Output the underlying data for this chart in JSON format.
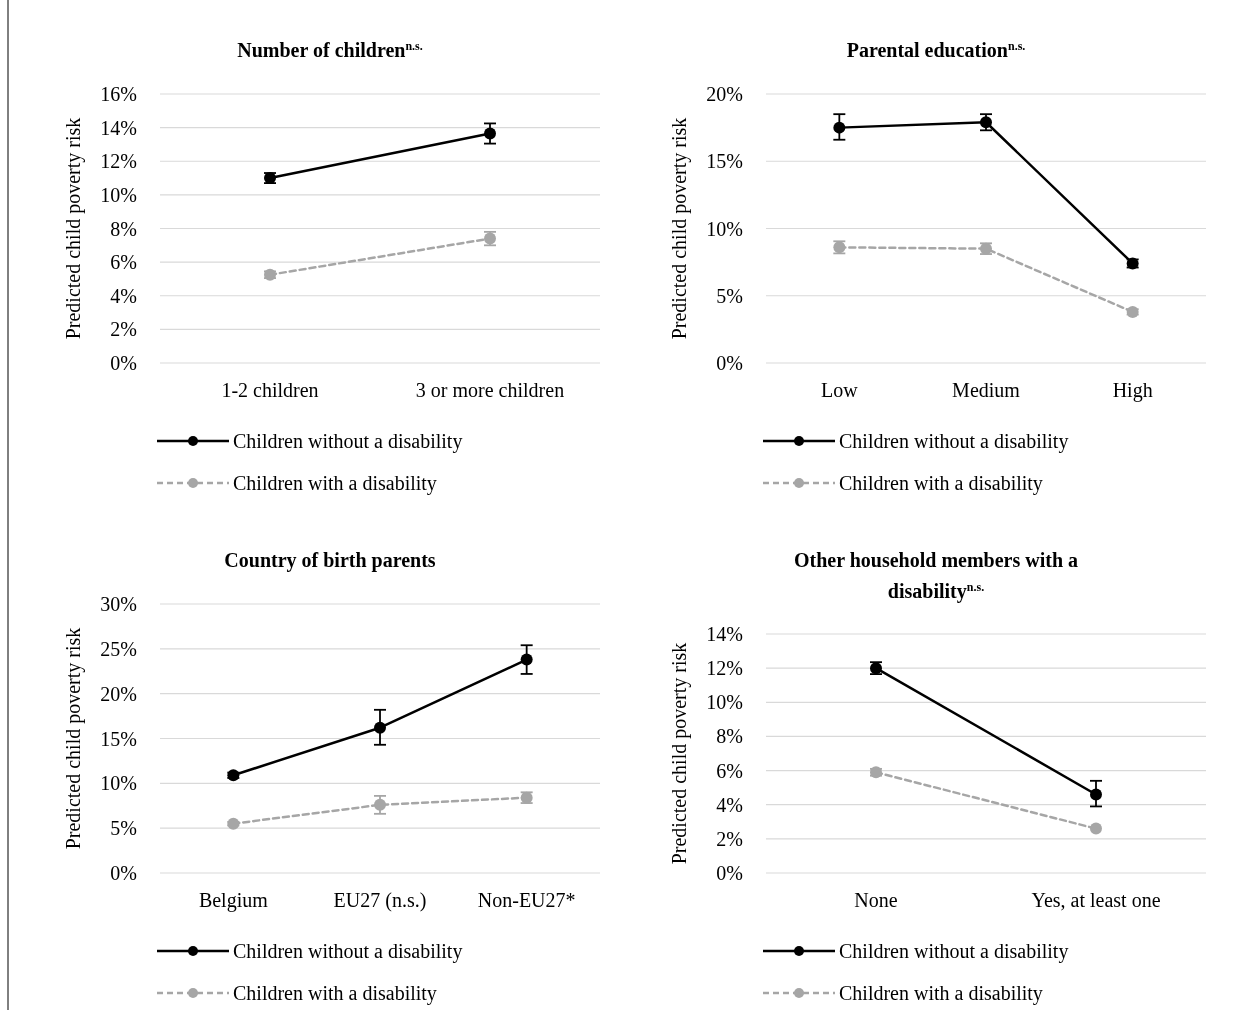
{
  "chart_data": [
    {
      "type": "line",
      "title": "Number of children$^{n.s.}$",
      "ylabel": "Predicted child poverty risk",
      "categories": [
        "1-2 children",
        "3 or more children"
      ],
      "ylim": [
        0,
        16
      ],
      "yticks": [
        {
          "value": 0,
          "label": "0%"
        },
        {
          "value": 2,
          "label": "2%"
        },
        {
          "value": 4,
          "label": "4%"
        },
        {
          "value": 6,
          "label": "6%"
        },
        {
          "value": 8,
          "label": "8%"
        },
        {
          "value": 10,
          "label": "10%"
        },
        {
          "value": 12,
          "label": "12%"
        },
        {
          "value": 14,
          "label": "14%"
        },
        {
          "value": 16,
          "label": "16%"
        }
      ],
      "grid": "y",
      "legend": "bottom",
      "marker": "circle",
      "series": [
        {
          "name": "Children without a disability",
          "color": "#000000",
          "line_style": "solid",
          "values": [
            11.0,
            13.65
          ],
          "errors": [
            [
              10.7,
              11.3
            ],
            [
              13.05,
              14.25
            ]
          ]
        },
        {
          "name": "Children with a disability",
          "color": "#a6a6a6",
          "line_style": "dashed",
          "values": [
            5.25,
            7.4
          ],
          "errors": [
            [
              5.05,
              5.45
            ],
            [
              7.0,
              7.8
            ]
          ]
        }
      ]
    },
    {
      "type": "line",
      "title": "Parental education$^{n.s.}$",
      "ylabel": "Predicted child poverty risk",
      "categories": [
        "Low",
        "Medium",
        "High"
      ],
      "ylim": [
        0,
        20
      ],
      "yticks": [
        {
          "value": 0,
          "label": "0%"
        },
        {
          "value": 5,
          "label": "5%"
        },
        {
          "value": 10,
          "label": "10%"
        },
        {
          "value": 15,
          "label": "15%"
        },
        {
          "value": 20,
          "label": "20%"
        }
      ],
      "grid": "y",
      "legend": "bottom",
      "marker": "circle",
      "series": [
        {
          "name": "Children without a disability",
          "color": "#000000",
          "line_style": "solid",
          "values": [
            17.5,
            17.9,
            7.4
          ],
          "errors": [
            [
              16.6,
              18.5
            ],
            [
              17.3,
              18.5
            ],
            [
              7.1,
              7.7
            ]
          ]
        },
        {
          "name": "Children with a disability",
          "color": "#a6a6a6",
          "line_style": "dashed",
          "values": [
            8.6,
            8.5,
            3.8
          ],
          "errors": [
            [
              8.15,
              9.05
            ],
            [
              8.1,
              8.9
            ],
            [
              3.6,
              4.0
            ]
          ]
        }
      ]
    },
    {
      "type": "line",
      "title": "Country of birth parents",
      "ylabel": "Predicted child poverty risk",
      "categories": [
        "Belgium",
        "EU27 (n.s.)",
        "Non-EU27*"
      ],
      "ylim": [
        0,
        30
      ],
      "yticks": [
        {
          "value": 0,
          "label": "0%"
        },
        {
          "value": 5,
          "label": "5%"
        },
        {
          "value": 10,
          "label": "10%"
        },
        {
          "value": 15,
          "label": "15%"
        },
        {
          "value": 20,
          "label": "20%"
        },
        {
          "value": 25,
          "label": "25%"
        },
        {
          "value": 30,
          "label": "30%"
        }
      ],
      "grid": "y",
      "legend": "bottom",
      "marker": "circle",
      "series": [
        {
          "name": "Children without a disability",
          "color": "#000000",
          "line_style": "solid",
          "values": [
            10.9,
            16.2,
            23.8
          ],
          "errors": [
            [
              10.6,
              11.2
            ],
            [
              14.3,
              18.2
            ],
            [
              22.2,
              25.4
            ]
          ]
        },
        {
          "name": "Children with a disability",
          "color": "#a6a6a6",
          "line_style": "dashed",
          "values": [
            5.5,
            7.6,
            8.4
          ],
          "errors": [
            [
              5.3,
              5.7
            ],
            [
              6.6,
              8.6
            ],
            [
              7.8,
              9.0
            ]
          ]
        }
      ]
    },
    {
      "type": "line",
      "title": "Other household members with a disability$^{n.s.}$",
      "ylabel": "Predicted child poverty risk",
      "categories": [
        "None",
        "Yes, at least one"
      ],
      "ylim": [
        0,
        14
      ],
      "yticks": [
        {
          "value": 0,
          "label": "0%"
        },
        {
          "value": 2,
          "label": "2%"
        },
        {
          "value": 4,
          "label": "4%"
        },
        {
          "value": 6,
          "label": "6%"
        },
        {
          "value": 8,
          "label": "8%"
        },
        {
          "value": 10,
          "label": "10%"
        },
        {
          "value": 12,
          "label": "12%"
        },
        {
          "value": 14,
          "label": "14%"
        }
      ],
      "grid": "y",
      "legend": "bottom",
      "marker": "circle",
      "series": [
        {
          "name": "Children without a disability",
          "color": "#000000",
          "line_style": "solid",
          "values": [
            12.0,
            4.6
          ],
          "errors": [
            [
              11.65,
              12.35
            ],
            [
              3.9,
              5.4
            ]
          ]
        },
        {
          "name": "Children with a disability",
          "color": "#a6a6a6",
          "line_style": "dashed",
          "values": [
            5.9,
            2.6
          ],
          "errors": [
            [
              5.7,
              6.1
            ],
            null
          ]
        }
      ]
    }
  ]
}
